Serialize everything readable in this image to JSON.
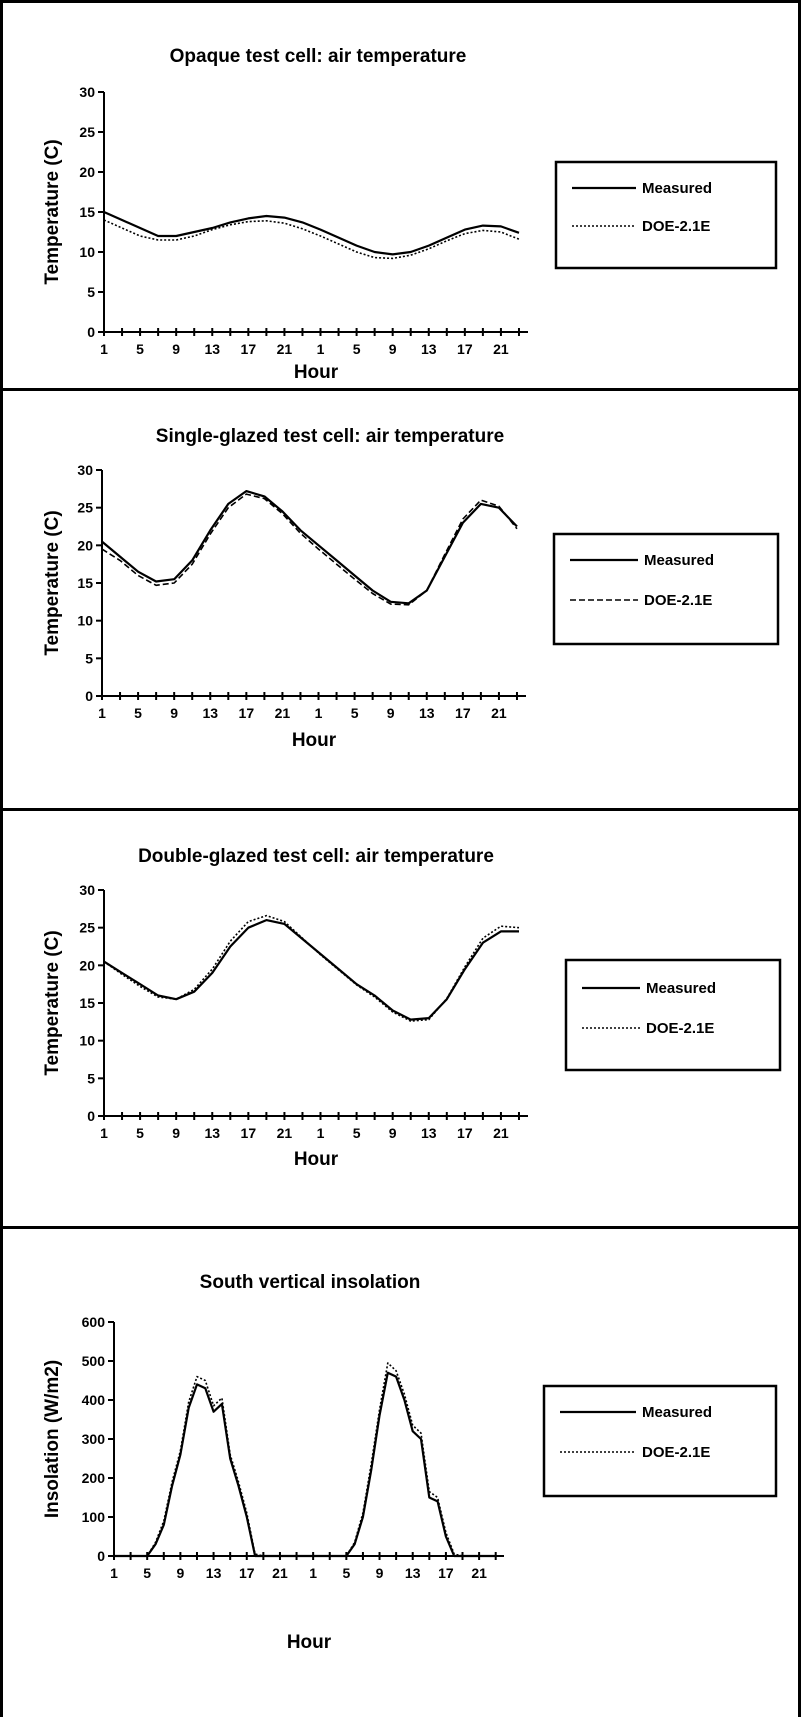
{
  "chart_data": [
    {
      "type": "line",
      "title": "Opaque test cell: air temperature",
      "xlabel": "Hour",
      "ylabel": "Temperature (C)",
      "ylim": [
        0,
        30
      ],
      "yticks": [
        0,
        5,
        10,
        15,
        20,
        25,
        30
      ],
      "x_tick_labels": [
        "1",
        "5",
        "9",
        "13",
        "17",
        "21",
        "1",
        "5",
        "9",
        "13",
        "17",
        "21"
      ],
      "x_hours": [
        1,
        3,
        5,
        7,
        9,
        11,
        13,
        15,
        17,
        19,
        21,
        23,
        25,
        27,
        29,
        31,
        33,
        35,
        37,
        39,
        41,
        43,
        45,
        47
      ],
      "series": [
        {
          "name": "Measured",
          "style": "solid",
          "values": [
            15,
            14,
            13,
            12,
            12,
            12.5,
            13,
            13.7,
            14.2,
            14.5,
            14.3,
            13.7,
            12.8,
            11.8,
            10.8,
            10,
            9.7,
            10,
            10.8,
            11.8,
            12.8,
            13.3,
            13.2,
            12.4
          ]
        },
        {
          "name": "DOE-2.1E",
          "style": "dotted",
          "values": [
            14,
            13,
            12,
            11.5,
            11.5,
            12,
            12.8,
            13.4,
            13.8,
            13.9,
            13.6,
            12.9,
            12,
            11,
            10,
            9.3,
            9.2,
            9.6,
            10.4,
            11.4,
            12.3,
            12.7,
            12.5,
            11.6
          ]
        }
      ]
    },
    {
      "type": "line",
      "title": "Single-glazed test cell: air temperature",
      "xlabel": "Hour",
      "ylabel": "Temperature (C)",
      "ylim": [
        0,
        30
      ],
      "yticks": [
        0,
        5,
        10,
        15,
        20,
        25,
        30
      ],
      "x_tick_labels": [
        "1",
        "5",
        "9",
        "13",
        "17",
        "21",
        "1",
        "5",
        "9",
        "13",
        "17",
        "21"
      ],
      "x_hours": [
        1,
        3,
        5,
        7,
        9,
        11,
        13,
        15,
        17,
        19,
        21,
        23,
        25,
        27,
        29,
        31,
        33,
        35,
        37,
        39,
        41,
        43,
        45,
        47
      ],
      "series": [
        {
          "name": "Measured",
          "style": "solid",
          "values": [
            20.5,
            18.5,
            16.5,
            15.2,
            15.5,
            18,
            22,
            25.5,
            27.2,
            26.5,
            24.5,
            22,
            20,
            18,
            16,
            14,
            12.5,
            12.3,
            14,
            18.5,
            23,
            25.5,
            25,
            22.5
          ]
        },
        {
          "name": "DOE-2.1E",
          "style": "dashed",
          "values": [
            19.5,
            18,
            16,
            14.7,
            15,
            17.5,
            21.5,
            25,
            26.8,
            26.2,
            24.2,
            21.6,
            19.5,
            17.5,
            15.5,
            13.6,
            12.2,
            12.1,
            14,
            18.8,
            23.5,
            26,
            25.2,
            22.2
          ]
        }
      ]
    },
    {
      "type": "line",
      "title": "Double-glazed test cell: air temperature",
      "xlabel": "Hour",
      "ylabel": "Temperature (C)",
      "ylim": [
        0,
        30
      ],
      "yticks": [
        0,
        5,
        10,
        15,
        20,
        25,
        30
      ],
      "x_tick_labels": [
        "1",
        "5",
        "9",
        "13",
        "17",
        "21",
        "1",
        "5",
        "9",
        "13",
        "17",
        "21"
      ],
      "x_hours": [
        1,
        3,
        5,
        7,
        9,
        11,
        13,
        15,
        17,
        19,
        21,
        23,
        25,
        27,
        29,
        31,
        33,
        35,
        37,
        39,
        41,
        43,
        45,
        47
      ],
      "series": [
        {
          "name": "Measured",
          "style": "solid",
          "values": [
            20.5,
            19,
            17.5,
            16,
            15.5,
            16.5,
            19,
            22.5,
            25,
            26,
            25.5,
            23.5,
            21.5,
            19.5,
            17.5,
            16,
            14,
            12.8,
            13,
            15.5,
            19.5,
            23,
            24.5,
            24.5
          ]
        },
        {
          "name": "DOE-2.1E",
          "style": "dotted",
          "values": [
            20.5,
            18.8,
            17.2,
            15.8,
            15.5,
            16.8,
            19.5,
            23.2,
            25.8,
            26.6,
            25.8,
            23.6,
            21.4,
            19.4,
            17.4,
            15.8,
            13.8,
            12.6,
            12.8,
            15.6,
            19.8,
            23.6,
            25.2,
            25
          ]
        }
      ]
    },
    {
      "type": "line",
      "title": "South vertical insolation",
      "xlabel": "Hour",
      "ylabel": "Insolation (W/m2)",
      "ylim": [
        0,
        600
      ],
      "yticks": [
        0,
        100,
        200,
        300,
        400,
        500,
        600
      ],
      "x_tick_labels": [
        "1",
        "5",
        "9",
        "13",
        "17",
        "21",
        "1",
        "5",
        "9",
        "13",
        "17",
        "21"
      ],
      "x_hours": [
        1,
        3,
        5,
        6,
        7,
        8,
        9,
        10,
        11,
        12,
        13,
        14,
        15,
        16,
        17,
        18,
        19,
        20,
        21,
        22,
        23,
        25,
        27,
        29,
        30,
        31,
        32,
        33,
        34,
        35,
        36,
        37,
        38,
        39,
        40,
        41,
        42,
        43,
        44,
        45,
        47
      ],
      "series": [
        {
          "name": "Measured",
          "style": "solid",
          "values": [
            0,
            0,
            0,
            30,
            80,
            180,
            260,
            380,
            440,
            430,
            370,
            390,
            250,
            180,
            100,
            0,
            0,
            0,
            0,
            0,
            0,
            0,
            0,
            0,
            30,
            100,
            220,
            360,
            470,
            460,
            400,
            320,
            300,
            150,
            140,
            50,
            0,
            0,
            0,
            0,
            0
          ]
        },
        {
          "name": "DOE-2.1E",
          "style": "dotted",
          "values": [
            0,
            0,
            0,
            35,
            90,
            190,
            270,
            395,
            460,
            450,
            385,
            405,
            260,
            190,
            110,
            5,
            0,
            0,
            0,
            0,
            0,
            0,
            0,
            0,
            35,
            110,
            235,
            375,
            495,
            475,
            415,
            335,
            315,
            165,
            150,
            60,
            5,
            0,
            0,
            0,
            0
          ]
        }
      ]
    }
  ]
}
